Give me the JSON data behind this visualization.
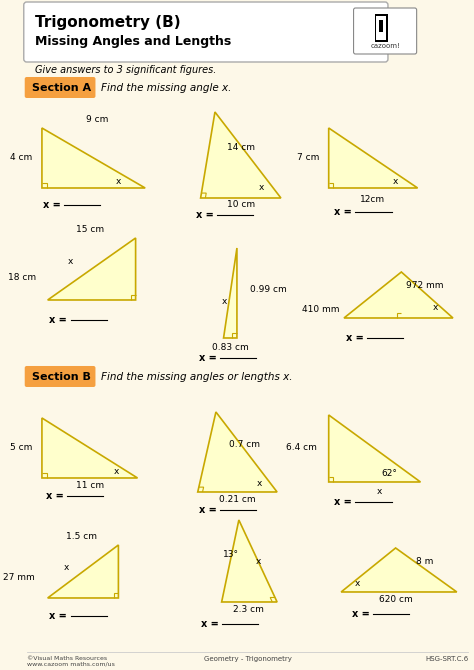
{
  "title_line1": "Trigonometry (B)",
  "title_line2": "Missing Angles and Lengths",
  "instruction": "Give answers to 3 significant figures.",
  "section_a_label": "Section A",
  "section_a_instruction": "Find the missing angle x.",
  "section_b_label": "Section B",
  "section_b_instruction": "Find the missing angles or lengths x.",
  "bg_color": "#fdf8e8",
  "header_bg": "#ffffff",
  "section_bg": "#f5a040",
  "triangle_fill": "#ffffcc",
  "triangle_edge": "#c8a800",
  "footer_left": "©Visual Maths Resources\nwww.cazoom maths.com/us",
  "footer_center": "Geometry - Trigonometry",
  "footer_right": "HSG-SRT.C.6"
}
